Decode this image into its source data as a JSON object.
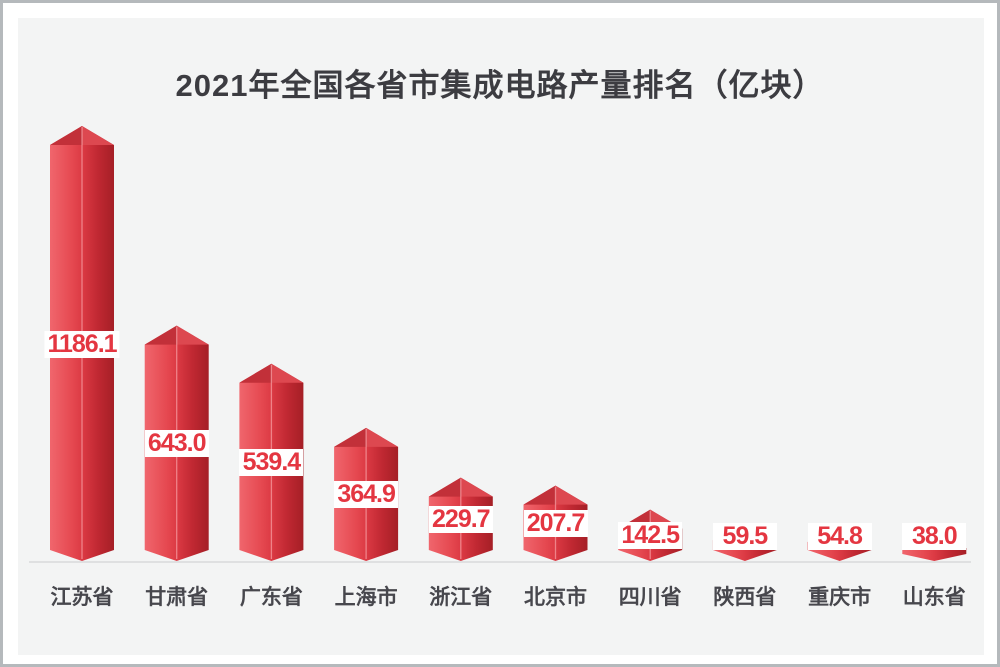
{
  "page": {
    "background": "#ffffff",
    "frame_border_color": "#b5b9bc",
    "panel_background": "#f3f4f4"
  },
  "chart_data": {
    "type": "bar",
    "title": "2021年全国各省市集成电路产量排名（亿块）",
    "unit": "亿块",
    "categories": [
      "江苏省",
      "甘肃省",
      "广东省",
      "上海市",
      "浙江省",
      "北京市",
      "四川省",
      "陕西省",
      "重庆市",
      "山东省"
    ],
    "values": [
      1186.1,
      643.0,
      539.4,
      364.9,
      229.7,
      207.7,
      142.5,
      59.5,
      54.8,
      38.0
    ],
    "value_format": "one-decimal",
    "xlabel": "",
    "ylabel": "",
    "ylim": [
      0,
      1250
    ],
    "grid": false,
    "legend": "none",
    "value_label_style": "white-badge-centered-on-bar",
    "bar_style": "3d-obelisk-pointed-top-notched-bottom",
    "colors": {
      "bar_gradient": [
        "#f0666d",
        "#e54850",
        "#dc3a44",
        "#c02832",
        "#a51f26"
      ],
      "roof_left": "#c23039",
      "roof_right": "#dd4850",
      "ridge_highlight": "rgba(255,190,193,0.55)",
      "value_text": "#e43641",
      "category_text": "#47474d",
      "title_text": "#3c3c41",
      "axis_line": "#cbcdce",
      "badge_background": "#ffffff"
    }
  }
}
